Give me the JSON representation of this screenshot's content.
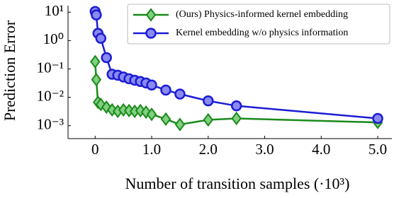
{
  "chart_data": {
    "type": "line",
    "x_label": "Number of transition samples (·10³)",
    "y_label": "Prediction Error",
    "y_scale": "log",
    "x": [
      0,
      0.02,
      0.05,
      0.1,
      0.2,
      0.3,
      0.4,
      0.5,
      0.6,
      0.7,
      0.8,
      0.9,
      1.0,
      1.25,
      1.5,
      2.0,
      2.5,
      5.0
    ],
    "series": [
      {
        "name": "(Ours) Physics-informed kernel embedding",
        "color": "#1a8a1a",
        "marker": "diamond",
        "values": [
          0.18,
          0.042,
          0.0067,
          0.0056,
          0.0045,
          0.0036,
          0.0032,
          0.0036,
          0.0034,
          0.0032,
          0.0034,
          0.003,
          0.0025,
          0.0017,
          0.0011,
          0.0016,
          0.0018,
          0.0013
        ]
      },
      {
        "name": "Kernel embedding w/o physics information",
        "color": "#1c1cd4",
        "marker": "circle",
        "values": [
          10.6,
          8,
          1.8,
          1.2,
          0.25,
          0.065,
          0.06,
          0.052,
          0.045,
          0.04,
          0.036,
          0.032,
          0.027,
          0.018,
          0.013,
          0.0075,
          0.005,
          0.0018
        ]
      }
    ],
    "xlim": [
      -0.48,
      5.25
    ],
    "xticks": [
      0,
      {
        "value": 1,
        "label": "1.0"
      },
      {
        "value": 2,
        "label": "2.0"
      },
      {
        "value": 3,
        "label": "3.0"
      },
      {
        "value": 4,
        "label": "4.0"
      },
      {
        "value": 5,
        "label": "5.0"
      }
    ],
    "ylim": [
      0.00035,
      17
    ],
    "yticks": [
      {
        "value": 0.001,
        "label": "10⁻³"
      },
      {
        "value": 0.01,
        "label": "10⁻²"
      },
      {
        "value": 0.1,
        "label": "10⁻¹"
      },
      {
        "value": 1,
        "label": "10⁰"
      },
      {
        "value": 10,
        "label": "10¹"
      }
    ],
    "legend": "upper right"
  }
}
